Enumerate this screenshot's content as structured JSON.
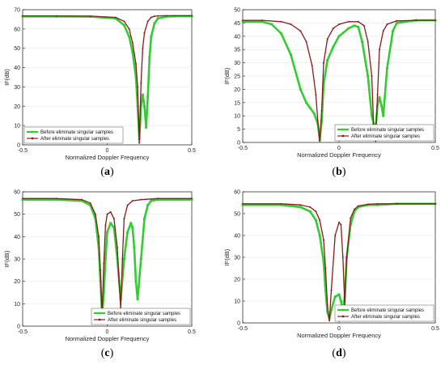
{
  "colors": {
    "before": "#33cc33",
    "after": "#8b1a1a",
    "axis": "#333333",
    "grid": "#e6e6e6"
  },
  "chart_data": [
    {
      "type": "line",
      "panel_label": "a",
      "xlabel": "Normalized Doppler Frequency",
      "ylabel": "IF(dB)",
      "xlim": [
        -0.5,
        0.5
      ],
      "ylim": [
        0,
        70
      ],
      "xticks": [
        "-0.5",
        "0",
        "0.5"
      ],
      "yticks": [
        "0",
        "10",
        "20",
        "30",
        "40",
        "50",
        "60",
        "70"
      ],
      "legend": "bottom-left",
      "series": [
        {
          "name": "Before eliminate singular samples",
          "x": [
            -0.5,
            -0.3,
            -0.1,
            0.05,
            0.1,
            0.13,
            0.15,
            0.17,
            0.18,
            0.19,
            0.2,
            0.21,
            0.22,
            0.23,
            0.24,
            0.25,
            0.26,
            0.28,
            0.3,
            0.35,
            0.4,
            0.5
          ],
          "values": [
            66.5,
            66.5,
            66.4,
            65.5,
            62,
            56,
            48,
            35,
            20,
            3,
            20,
            26,
            20,
            9,
            25,
            45,
            56,
            63,
            65.5,
            66.4,
            66.6,
            66.6
          ]
        },
        {
          "name": "After eliminate singular samples",
          "x": [
            -0.5,
            -0.3,
            -0.1,
            0.05,
            0.1,
            0.13,
            0.15,
            0.17,
            0.18,
            0.19,
            0.2,
            0.21,
            0.22,
            0.24,
            0.26,
            0.28,
            0.3,
            0.35,
            0.5
          ],
          "values": [
            66.8,
            66.8,
            66.7,
            66,
            64,
            60,
            53,
            42,
            30,
            1,
            32,
            50,
            58,
            64,
            66,
            66.6,
            66.8,
            66.9,
            66.9
          ]
        }
      ]
    },
    {
      "type": "line",
      "panel_label": "b",
      "xlabel": "Normalized Doppler Frequency",
      "ylabel": "IF(dB)",
      "xlim": [
        -0.5,
        0.5
      ],
      "ylim": [
        0,
        50
      ],
      "xticks": [
        "-0.5",
        "0",
        "0.5"
      ],
      "yticks": [
        "0",
        "5",
        "10",
        "15",
        "20",
        "25",
        "30",
        "35",
        "40",
        "45",
        "50"
      ],
      "legend": "bottom-right",
      "series": [
        {
          "name": "Before eliminate singular samples",
          "x": [
            -0.5,
            -0.4,
            -0.35,
            -0.3,
            -0.25,
            -0.2,
            -0.17,
            -0.15,
            -0.13,
            -0.11,
            -0.1,
            -0.09,
            -0.08,
            -0.06,
            -0.03,
            0,
            0.05,
            0.08,
            0.1,
            0.12,
            0.15,
            0.17,
            0.18,
            0.19,
            0.2,
            0.21,
            0.22,
            0.23,
            0.25,
            0.28,
            0.3,
            0.4,
            0.5
          ],
          "values": [
            45.5,
            45.5,
            44.5,
            41,
            33,
            20,
            15,
            13,
            11,
            7,
            1,
            8,
            22,
            31,
            36,
            40,
            43,
            44,
            43.5,
            38,
            25,
            10,
            7,
            5,
            14,
            17,
            14,
            10,
            28,
            42,
            45,
            46,
            46
          ]
        },
        {
          "name": "After eliminate singular samples",
          "x": [
            -0.5,
            -0.4,
            -0.3,
            -0.25,
            -0.2,
            -0.17,
            -0.14,
            -0.12,
            -0.11,
            -0.1,
            -0.09,
            -0.08,
            -0.06,
            -0.03,
            0,
            0.05,
            0.1,
            0.13,
            0.15,
            0.17,
            0.18,
            0.19,
            0.2,
            0.21,
            0.23,
            0.25,
            0.3,
            0.4,
            0.5
          ],
          "values": [
            46,
            46,
            45.5,
            44.5,
            42,
            38,
            29,
            18,
            8,
            0.5,
            12,
            30,
            39,
            43,
            44.5,
            45.5,
            45.5,
            44,
            38,
            25,
            6,
            0.5,
            18,
            35,
            42,
            44.5,
            45.8,
            46,
            46
          ]
        }
      ]
    },
    {
      "type": "line",
      "panel_label": "c",
      "xlabel": "Normalized Doppler Frequency",
      "ylabel": "IF(dB)",
      "xlim": [
        -0.5,
        0.5
      ],
      "ylim": [
        0,
        60
      ],
      "xticks": [
        "-0.5",
        "0",
        "0.5"
      ],
      "yticks": [
        "0",
        "10",
        "20",
        "30",
        "40",
        "50",
        "60"
      ],
      "legend": "bottom-right",
      "series": [
        {
          "name": "Before eliminate singular samples",
          "x": [
            -0.5,
            -0.3,
            -0.15,
            -0.1,
            -0.07,
            -0.05,
            -0.04,
            -0.03,
            -0.02,
            -0.01,
            0,
            0.02,
            0.04,
            0.06,
            0.08,
            0.1,
            0.12,
            0.14,
            0.15,
            0.16,
            0.17,
            0.18,
            0.2,
            0.22,
            0.24,
            0.26,
            0.3,
            0.4,
            0.5
          ],
          "values": [
            56.5,
            56.5,
            56,
            54,
            48,
            35,
            20,
            5,
            15,
            30,
            42,
            46,
            44,
            30,
            12,
            30,
            42,
            46,
            44,
            35,
            20,
            12,
            30,
            48,
            54,
            56,
            56.5,
            56.5,
            56.5
          ]
        },
        {
          "name": "After eliminate singular samples",
          "x": [
            -0.5,
            -0.3,
            -0.15,
            -0.1,
            -0.07,
            -0.05,
            -0.04,
            -0.03,
            -0.02,
            -0.01,
            0,
            0.02,
            0.04,
            0.06,
            0.07,
            0.08,
            0.09,
            0.1,
            0.12,
            0.15,
            0.2,
            0.3,
            0.5
          ],
          "values": [
            57,
            57,
            56.5,
            55,
            50,
            40,
            25,
            5,
            28,
            45,
            50,
            51,
            48,
            35,
            20,
            8,
            30,
            48,
            54,
            56,
            56.5,
            57,
            57
          ]
        }
      ]
    },
    {
      "type": "line",
      "panel_label": "d",
      "xlabel": "Normalized Doppler Frequency",
      "ylabel": "IF(dB)",
      "xlim": [
        -0.5,
        0.5
      ],
      "ylim": [
        0,
        60
      ],
      "xticks": [
        "-0.5",
        "0",
        "0.5"
      ],
      "yticks": [
        "0",
        "10",
        "20",
        "30",
        "40",
        "50",
        "60"
      ],
      "legend": "bottom-right",
      "series": [
        {
          "name": "Before eliminate singular samples",
          "x": [
            -0.5,
            -0.3,
            -0.2,
            -0.15,
            -0.12,
            -0.1,
            -0.08,
            -0.07,
            -0.06,
            -0.05,
            -0.04,
            -0.02,
            0,
            0.01,
            0.02,
            0.03,
            0.04,
            0.06,
            0.08,
            0.1,
            0.15,
            0.2,
            0.3,
            0.5
          ],
          "values": [
            54,
            54,
            53,
            51,
            47,
            40,
            28,
            15,
            5,
            2,
            6,
            12,
            13,
            10,
            5,
            12,
            30,
            45,
            51,
            53,
            54,
            54,
            54.5,
            54.5
          ]
        },
        {
          "name": "After eliminate singular samples",
          "x": [
            -0.5,
            -0.3,
            -0.2,
            -0.15,
            -0.12,
            -0.1,
            -0.08,
            -0.07,
            -0.06,
            -0.05,
            -0.04,
            -0.02,
            0,
            0.01,
            0.02,
            0.03,
            0.04,
            0.06,
            0.08,
            0.1,
            0.15,
            0.2,
            0.3,
            0.5
          ],
          "values": [
            54.5,
            54.5,
            54,
            53,
            51,
            47,
            38,
            25,
            8,
            1,
            15,
            40,
            46,
            45,
            30,
            8,
            30,
            48,
            52,
            53.5,
            54.3,
            54.5,
            54.5,
            54.5
          ]
        }
      ]
    }
  ]
}
